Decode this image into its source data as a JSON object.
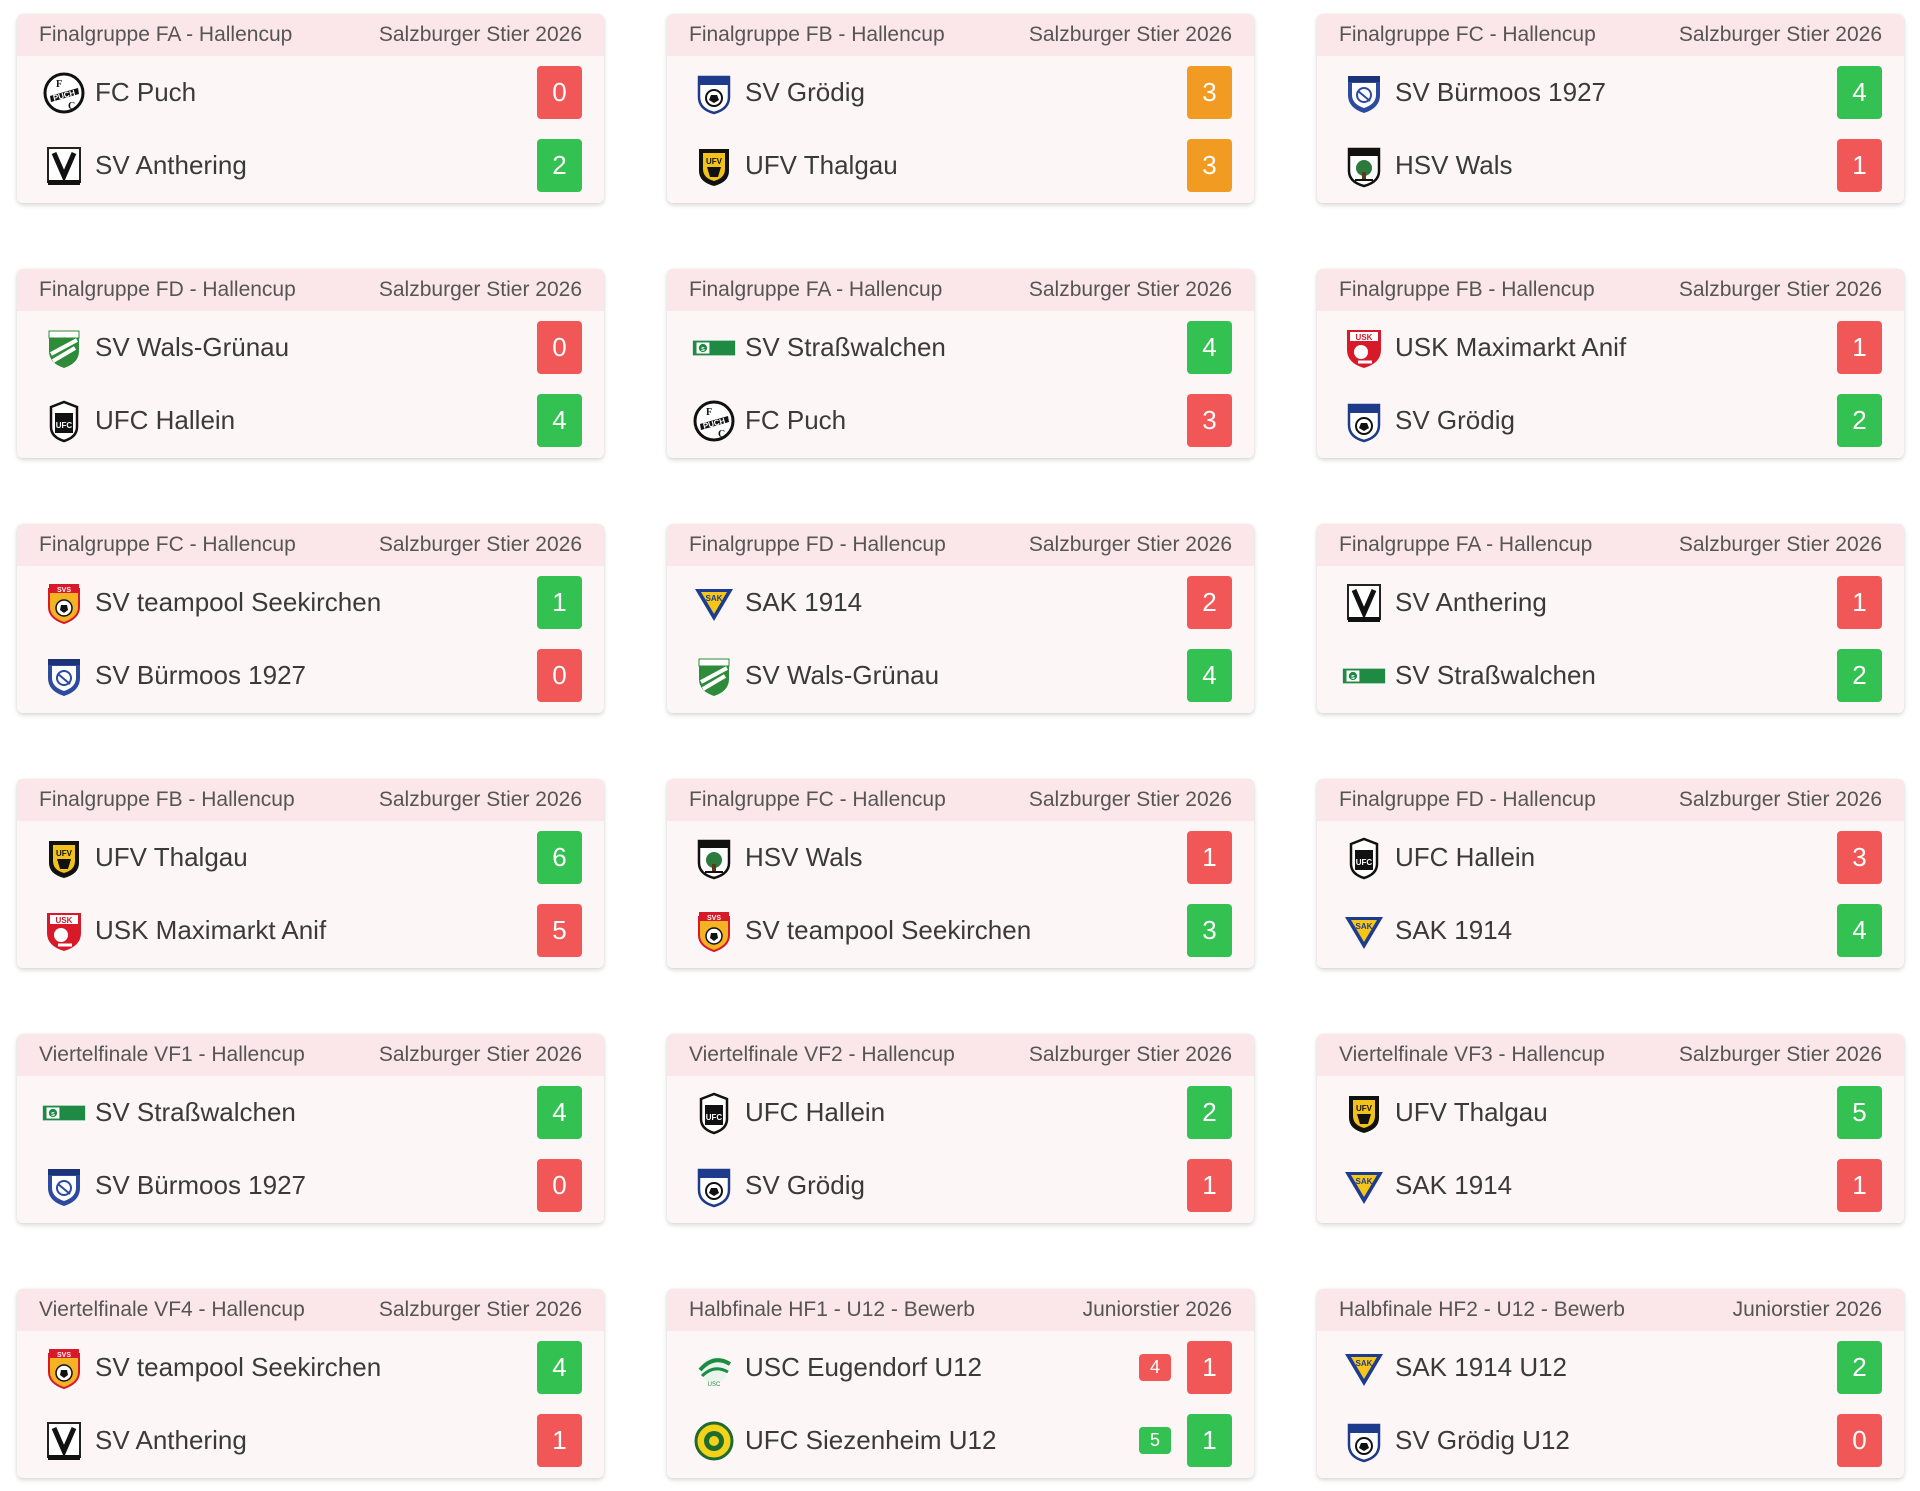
{
  "colors": {
    "win": "#33c152",
    "loss": "#f25757",
    "draw": "#f29b22",
    "header_bg": "#fbe7ea"
  },
  "matches": [
    {
      "group": "Finalgruppe FA - Hallencup",
      "event": "Salzburger Stier 2026",
      "teams": [
        {
          "name": "FC Puch",
          "logo": "fc-puch-crest-icon",
          "score": "0",
          "result": "loss"
        },
        {
          "name": "SV Anthering",
          "logo": "sv-anthering-crest-icon",
          "score": "2",
          "result": "win"
        }
      ]
    },
    {
      "group": "Finalgruppe FB - Hallencup",
      "event": "Salzburger Stier 2026",
      "teams": [
        {
          "name": "SV Grödig",
          "logo": "sv-groedig-crest-icon",
          "score": "3",
          "result": "draw"
        },
        {
          "name": "UFV Thalgau",
          "logo": "ufv-thalgau-crest-icon",
          "score": "3",
          "result": "draw"
        }
      ]
    },
    {
      "group": "Finalgruppe FC - Hallencup",
      "event": "Salzburger Stier 2026",
      "teams": [
        {
          "name": "SV Bürmoos 1927",
          "logo": "sv-buermoos-crest-icon",
          "score": "4",
          "result": "win"
        },
        {
          "name": "HSV Wals",
          "logo": "hsv-wals-crest-icon",
          "score": "1",
          "result": "loss"
        }
      ]
    },
    {
      "group": "Finalgruppe FD - Hallencup",
      "event": "Salzburger Stier 2026",
      "teams": [
        {
          "name": "SV Wals-Grünau",
          "logo": "sv-wals-gruenau-crest-icon",
          "score": "0",
          "result": "loss"
        },
        {
          "name": "UFC Hallein",
          "logo": "ufc-hallein-crest-icon",
          "score": "4",
          "result": "win"
        }
      ]
    },
    {
      "group": "Finalgruppe FA - Hallencup",
      "event": "Salzburger Stier 2026",
      "teams": [
        {
          "name": "SV Straßwalchen",
          "logo": "sv-strasswalchen-crest-icon",
          "score": "4",
          "result": "win"
        },
        {
          "name": "FC Puch",
          "logo": "fc-puch-crest-icon",
          "score": "3",
          "result": "loss"
        }
      ]
    },
    {
      "group": "Finalgruppe FB - Hallencup",
      "event": "Salzburger Stier 2026",
      "teams": [
        {
          "name": "USK Maximarkt Anif",
          "logo": "usk-anif-crest-icon",
          "score": "1",
          "result": "loss"
        },
        {
          "name": "SV Grödig",
          "logo": "sv-groedig-crest-icon",
          "score": "2",
          "result": "win"
        }
      ]
    },
    {
      "group": "Finalgruppe FC - Hallencup",
      "event": "Salzburger Stier 2026",
      "teams": [
        {
          "name": "SV teampool Seekirchen",
          "logo": "sv-seekirchen-crest-icon",
          "score": "1",
          "result": "win"
        },
        {
          "name": "SV Bürmoos 1927",
          "logo": "sv-buermoos-crest-icon",
          "score": "0",
          "result": "loss"
        }
      ]
    },
    {
      "group": "Finalgruppe FD - Hallencup",
      "event": "Salzburger Stier 2026",
      "teams": [
        {
          "name": "SAK 1914",
          "logo": "sak-1914-crest-icon",
          "score": "2",
          "result": "loss"
        },
        {
          "name": "SV Wals-Grünau",
          "logo": "sv-wals-gruenau-crest-icon",
          "score": "4",
          "result": "win"
        }
      ]
    },
    {
      "group": "Finalgruppe FA - Hallencup",
      "event": "Salzburger Stier 2026",
      "teams": [
        {
          "name": "SV Anthering",
          "logo": "sv-anthering-crest-icon",
          "score": "1",
          "result": "loss"
        },
        {
          "name": "SV Straßwalchen",
          "logo": "sv-strasswalchen-crest-icon",
          "score": "2",
          "result": "win"
        }
      ]
    },
    {
      "group": "Finalgruppe FB - Hallencup",
      "event": "Salzburger Stier 2026",
      "teams": [
        {
          "name": "UFV Thalgau",
          "logo": "ufv-thalgau-crest-icon",
          "score": "6",
          "result": "win"
        },
        {
          "name": "USK Maximarkt Anif",
          "logo": "usk-anif-crest-icon",
          "score": "5",
          "result": "loss"
        }
      ]
    },
    {
      "group": "Finalgruppe FC - Hallencup",
      "event": "Salzburger Stier 2026",
      "teams": [
        {
          "name": "HSV Wals",
          "logo": "hsv-wals-crest-icon",
          "score": "1",
          "result": "loss"
        },
        {
          "name": "SV teampool Seekirchen",
          "logo": "sv-seekirchen-crest-icon",
          "score": "3",
          "result": "win"
        }
      ]
    },
    {
      "group": "Finalgruppe FD - Hallencup",
      "event": "Salzburger Stier 2026",
      "teams": [
        {
          "name": "UFC Hallein",
          "logo": "ufc-hallein-crest-icon",
          "score": "3",
          "result": "loss"
        },
        {
          "name": "SAK 1914",
          "logo": "sak-1914-crest-icon",
          "score": "4",
          "result": "win"
        }
      ]
    },
    {
      "group": "Viertelfinale VF1 - Hallencup",
      "event": "Salzburger Stier 2026",
      "teams": [
        {
          "name": "SV Straßwalchen",
          "logo": "sv-strasswalchen-crest-icon",
          "score": "4",
          "result": "win"
        },
        {
          "name": "SV Bürmoos 1927",
          "logo": "sv-buermoos-crest-icon",
          "score": "0",
          "result": "loss"
        }
      ]
    },
    {
      "group": "Viertelfinale VF2 - Hallencup",
      "event": "Salzburger Stier 2026",
      "teams": [
        {
          "name": "UFC Hallein",
          "logo": "ufc-hallein-crest-icon",
          "score": "2",
          "result": "win"
        },
        {
          "name": "SV Grödig",
          "logo": "sv-groedig-crest-icon",
          "score": "1",
          "result": "loss"
        }
      ]
    },
    {
      "group": "Viertelfinale VF3 - Hallencup",
      "event": "Salzburger Stier 2026",
      "teams": [
        {
          "name": "UFV Thalgau",
          "logo": "ufv-thalgau-crest-icon",
          "score": "5",
          "result": "win"
        },
        {
          "name": "SAK 1914",
          "logo": "sak-1914-crest-icon",
          "score": "1",
          "result": "loss"
        }
      ]
    },
    {
      "group": "Viertelfinale VF4 - Hallencup",
      "event": "Salzburger Stier 2026",
      "teams": [
        {
          "name": "SV teampool Seekirchen",
          "logo": "sv-seekirchen-crest-icon",
          "score": "4",
          "result": "win"
        },
        {
          "name": "SV Anthering",
          "logo": "sv-anthering-crest-icon",
          "score": "1",
          "result": "loss"
        }
      ]
    },
    {
      "group": "Halbfinale HF1 - U12 - Bewerb",
      "event": "Juniorstier 2026",
      "teams": [
        {
          "name": "USC Eugendorf U12",
          "logo": "usc-eugendorf-crest-icon",
          "score": "1",
          "result": "loss",
          "penalty": "4",
          "penalty_result": "loss"
        },
        {
          "name": "UFC Siezenheim U12",
          "logo": "ufc-siezenheim-crest-icon",
          "score": "1",
          "result": "win",
          "penalty": "5",
          "penalty_result": "win"
        }
      ]
    },
    {
      "group": "Halbfinale HF2 - U12 - Bewerb",
      "event": "Juniorstier 2026",
      "teams": [
        {
          "name": "SAK 1914 U12",
          "logo": "sak-1914-crest-icon",
          "score": "2",
          "result": "win"
        },
        {
          "name": "SV Grödig U12",
          "logo": "sv-groedig-crest-icon",
          "score": "0",
          "result": "loss"
        }
      ]
    }
  ]
}
